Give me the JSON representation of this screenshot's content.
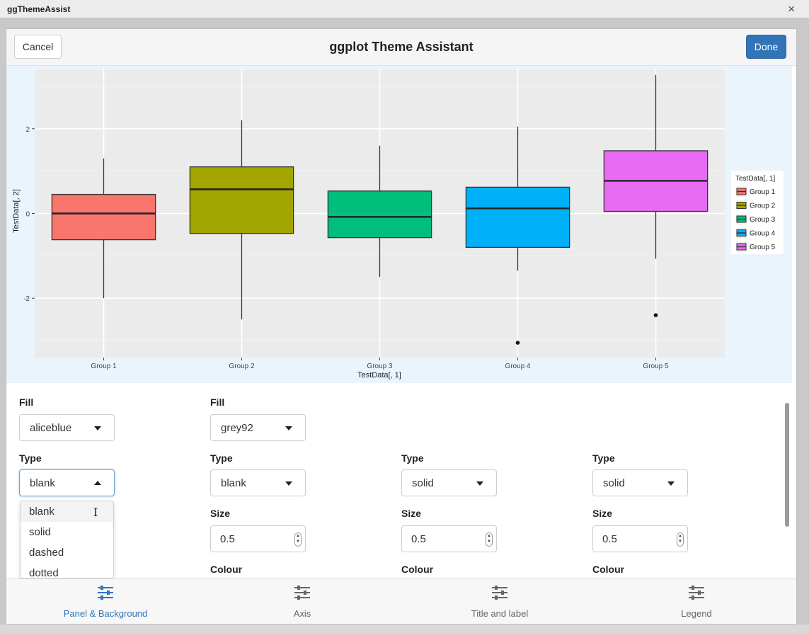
{
  "window": {
    "title": "ggThemeAssist",
    "close_label": "×"
  },
  "header": {
    "cancel_label": "Cancel",
    "title": "ggplot Theme Assistant",
    "done_label": "Done"
  },
  "chart_data": {
    "type": "box",
    "xlabel": "TestData[, 1]",
    "ylabel": "TestData[, 2]",
    "ylim": [
      -3.4,
      3.4
    ],
    "yticks": [
      -2,
      0,
      2
    ],
    "ytick_labels": [
      "-2",
      "0",
      "2"
    ],
    "legend": {
      "title": "TestData[, 1]",
      "placement": "right"
    },
    "categories": [
      "Group 1",
      "Group 2",
      "Group 3",
      "Group 4",
      "Group 5"
    ],
    "boxes": [
      {
        "name": "Group 1",
        "whisker_low": -2.0,
        "q1": -0.62,
        "median": 0.0,
        "q3": 0.45,
        "whisker_high": 1.3,
        "outliers": [],
        "color": "#f8766d"
      },
      {
        "name": "Group 2",
        "whisker_low": -2.5,
        "q1": -0.47,
        "median": 0.57,
        "q3": 1.1,
        "whisker_high": 2.2,
        "outliers": [],
        "color": "#a3a500"
      },
      {
        "name": "Group 3",
        "whisker_low": -1.5,
        "q1": -0.57,
        "median": -0.08,
        "q3": 0.53,
        "whisker_high": 1.6,
        "outliers": [],
        "color": "#00bf7d"
      },
      {
        "name": "Group 4",
        "whisker_low": -1.35,
        "q1": -0.8,
        "median": 0.12,
        "q3": 0.62,
        "whisker_high": 2.05,
        "outliers": [
          -3.05
        ],
        "color": "#00b0f6"
      },
      {
        "name": "Group 5",
        "whisker_low": -1.07,
        "q1": 0.05,
        "median": 0.77,
        "q3": 1.48,
        "whisker_high": 3.27,
        "outliers": [
          -2.4
        ],
        "color": "#e76bf3"
      }
    ],
    "panel_background": "grey92",
    "plot_background": "aliceblue",
    "grid": true
  },
  "controls": {
    "col1": {
      "fill_label": "Fill",
      "fill_value": "aliceblue",
      "type_label": "Type",
      "type_value": "blank"
    },
    "col2": {
      "fill_label": "Fill",
      "fill_value": "grey92",
      "type_label": "Type",
      "type_value": "blank",
      "size_label": "Size",
      "size_value": "0.5",
      "colour_label": "Colour"
    },
    "col3": {
      "type_label": "Type",
      "type_value": "solid",
      "size_label": "Size",
      "size_value": "0.5",
      "colour_label": "Colour"
    },
    "col4": {
      "type_label": "Type",
      "type_value": "solid",
      "size_label": "Size",
      "size_value": "0.5",
      "colour_label": "Colour"
    },
    "dropdown_options": [
      "blank",
      "solid",
      "dashed",
      "dotted"
    ]
  },
  "tabs": [
    {
      "label": "Panel & Background",
      "active": true
    },
    {
      "label": "Axis",
      "active": false
    },
    {
      "label": "Title and label",
      "active": false
    },
    {
      "label": "Legend",
      "active": false
    }
  ]
}
